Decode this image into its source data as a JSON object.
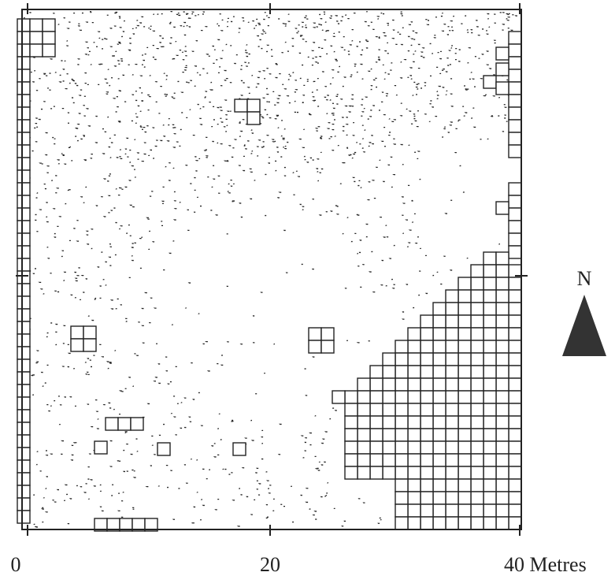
{
  "scale": {
    "labels": [
      "0",
      "20",
      "40 Metres"
    ]
  },
  "north": "N"
}
